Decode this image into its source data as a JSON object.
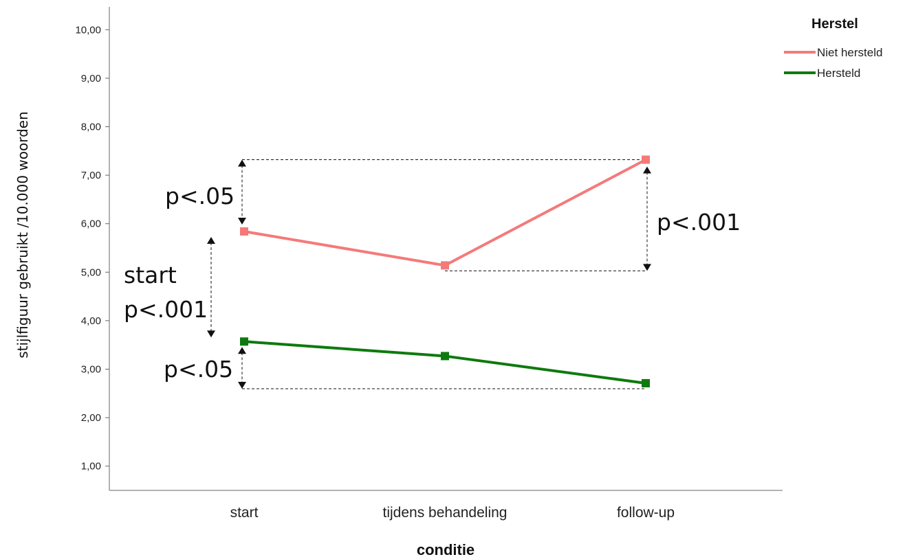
{
  "chart_data": {
    "type": "line",
    "xlabel": "conditie",
    "ylabel": "stijlfiguur gebruikt /10.000 woorden",
    "categories": [
      "start",
      "tijdens behandeling",
      "follow-up"
    ],
    "ylim": [
      0.5,
      10.5
    ],
    "yticks": [
      "1,00",
      "2,00",
      "3,00",
      "4,00",
      "5,00",
      "6,00",
      "7,00",
      "8,00",
      "9,00",
      "10,00"
    ],
    "grid": false,
    "legend": {
      "title": "Herstel",
      "position": "top-right"
    },
    "series": [
      {
        "name": "Niet hersteld",
        "color": "#f47a7a",
        "values": [
          5.84,
          5.14,
          7.32
        ]
      },
      {
        "name": "Hersteld",
        "color": "#0e7a0e",
        "values": [
          3.57,
          3.27,
          2.71
        ]
      }
    ],
    "annotations": {
      "niet_start_vs_followup": "p<.05",
      "niet_tijdens_vs_followup": "p<.001",
      "start_word": "start",
      "start_between_groups": "p<.001",
      "hersteld_start_vs_followup": "p<.05"
    }
  }
}
